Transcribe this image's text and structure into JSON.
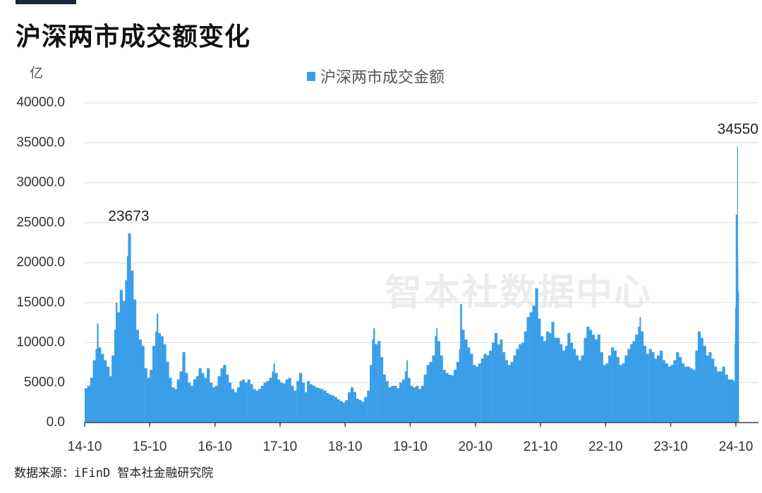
{
  "colors": {
    "accent": "#1c2541",
    "bar": "#3a9fe8"
  },
  "watermark": "智本社数据中心",
  "source_note": "数据来源：iFinD 智本社金融研究院",
  "chart_data": {
    "type": "bar",
    "title": "沪深两市成交额变化",
    "ylabel": "亿",
    "ylim": [
      0,
      40000
    ],
    "y_ticks": [
      "0.0",
      "5000.0",
      "10000.0",
      "15000.0",
      "20000.0",
      "25000.0",
      "30000.0",
      "35000.0",
      "40000.0"
    ],
    "x_ticks": [
      "14-10",
      "15-10",
      "16-10",
      "17-10",
      "18-10",
      "19-10",
      "20-10",
      "21-10",
      "22-10",
      "23-10",
      "24-10"
    ],
    "grid": "horizontal",
    "legend_position": "top-center",
    "annotations": [
      {
        "x": "2015-06-01",
        "y": 23673,
        "text": "23673"
      },
      {
        "x": "2024-10-08",
        "y": 34550,
        "text": "34550"
      }
    ],
    "series": [
      {
        "name": "沪深两市成交金额",
        "points": [
          [
            "2014-10-01",
            4300
          ],
          [
            "2014-10-16",
            4600
          ],
          [
            "2014-11-01",
            5600
          ],
          [
            "2014-11-16",
            7800
          ],
          [
            "2014-12-01",
            9200
          ],
          [
            "2014-12-09",
            12400
          ],
          [
            "2014-12-16",
            9400
          ],
          [
            "2015-01-01",
            8600
          ],
          [
            "2015-01-16",
            7800
          ],
          [
            "2015-02-01",
            7000
          ],
          [
            "2015-02-16",
            5800
          ],
          [
            "2015-03-01",
            8400
          ],
          [
            "2015-03-16",
            11600
          ],
          [
            "2015-03-24",
            15000
          ],
          [
            "2015-04-01",
            13800
          ],
          [
            "2015-04-16",
            16600
          ],
          [
            "2015-05-01",
            15200
          ],
          [
            "2015-05-16",
            17800
          ],
          [
            "2015-05-26",
            20800
          ],
          [
            "2015-06-01",
            23673
          ],
          [
            "2015-06-16",
            19000
          ],
          [
            "2015-07-01",
            15400
          ],
          [
            "2015-07-16",
            11600
          ],
          [
            "2015-08-01",
            10400
          ],
          [
            "2015-08-16",
            9600
          ],
          [
            "2015-09-01",
            6800
          ],
          [
            "2015-09-16",
            5600
          ],
          [
            "2015-10-01",
            6600
          ],
          [
            "2015-10-16",
            9600
          ],
          [
            "2015-11-01",
            11400
          ],
          [
            "2015-11-09",
            13600
          ],
          [
            "2015-11-16",
            11200
          ],
          [
            "2015-12-01",
            10800
          ],
          [
            "2015-12-16",
            9800
          ],
          [
            "2016-01-01",
            7600
          ],
          [
            "2016-01-16",
            5600
          ],
          [
            "2016-02-01",
            4400
          ],
          [
            "2016-02-16",
            4200
          ],
          [
            "2016-03-01",
            5400
          ],
          [
            "2016-03-16",
            6400
          ],
          [
            "2016-04-01",
            8800
          ],
          [
            "2016-04-16",
            6200
          ],
          [
            "2016-05-01",
            5000
          ],
          [
            "2016-05-16",
            4600
          ],
          [
            "2016-06-01",
            5400
          ],
          [
            "2016-06-16",
            5800
          ],
          [
            "2016-07-01",
            6800
          ],
          [
            "2016-07-16",
            6200
          ],
          [
            "2016-08-01",
            5600
          ],
          [
            "2016-08-16",
            6800
          ],
          [
            "2016-09-01",
            5000
          ],
          [
            "2016-09-16",
            4400
          ],
          [
            "2016-10-01",
            4600
          ],
          [
            "2016-10-16",
            5800
          ],
          [
            "2016-11-01",
            6800
          ],
          [
            "2016-11-16",
            7200
          ],
          [
            "2016-12-01",
            6000
          ],
          [
            "2016-12-16",
            5000
          ],
          [
            "2017-01-01",
            4200
          ],
          [
            "2017-01-16",
            3800
          ],
          [
            "2017-02-01",
            4400
          ],
          [
            "2017-02-16",
            5200
          ],
          [
            "2017-03-01",
            5400
          ],
          [
            "2017-03-16",
            5000
          ],
          [
            "2017-04-01",
            5400
          ],
          [
            "2017-04-16",
            4800
          ],
          [
            "2017-05-01",
            4200
          ],
          [
            "2017-05-16",
            4000
          ],
          [
            "2017-06-01",
            4200
          ],
          [
            "2017-06-16",
            4600
          ],
          [
            "2017-07-01",
            5000
          ],
          [
            "2017-07-16",
            5200
          ],
          [
            "2017-08-01",
            5600
          ],
          [
            "2017-08-16",
            6400
          ],
          [
            "2017-08-25",
            7400
          ],
          [
            "2017-09-01",
            6200
          ],
          [
            "2017-09-16",
            5400
          ],
          [
            "2017-10-01",
            5000
          ],
          [
            "2017-10-16",
            4900
          ],
          [
            "2017-11-01",
            5400
          ],
          [
            "2017-11-16",
            5600
          ],
          [
            "2017-12-01",
            4600
          ],
          [
            "2017-12-16",
            4000
          ],
          [
            "2018-01-01",
            5200
          ],
          [
            "2018-01-16",
            6200
          ],
          [
            "2018-02-01",
            5000
          ],
          [
            "2018-02-16",
            3800
          ],
          [
            "2018-03-01",
            5200
          ],
          [
            "2018-03-16",
            4800
          ],
          [
            "2018-04-01",
            4600
          ],
          [
            "2018-04-16",
            4400
          ],
          [
            "2018-05-01",
            4300
          ],
          [
            "2018-05-16",
            4200
          ],
          [
            "2018-06-01",
            4000
          ],
          [
            "2018-06-16",
            3700
          ],
          [
            "2018-07-01",
            3500
          ],
          [
            "2018-07-16",
            3400
          ],
          [
            "2018-08-01",
            3200
          ],
          [
            "2018-08-16",
            2900
          ],
          [
            "2018-09-01",
            2700
          ],
          [
            "2018-09-16",
            2500
          ],
          [
            "2018-10-01",
            2800
          ],
          [
            "2018-10-16",
            3800
          ],
          [
            "2018-11-01",
            4400
          ],
          [
            "2018-11-16",
            3800
          ],
          [
            "2018-12-01",
            3000
          ],
          [
            "2018-12-16",
            2800
          ],
          [
            "2019-01-01",
            2600
          ],
          [
            "2019-01-16",
            3200
          ],
          [
            "2019-02-01",
            4000
          ],
          [
            "2019-02-16",
            7200
          ],
          [
            "2019-03-01",
            10400
          ],
          [
            "2019-03-08",
            11800
          ],
          [
            "2019-03-16",
            9800
          ],
          [
            "2019-04-01",
            10200
          ],
          [
            "2019-04-16",
            8200
          ],
          [
            "2019-05-01",
            6000
          ],
          [
            "2019-05-16",
            5200
          ],
          [
            "2019-06-01",
            4400
          ],
          [
            "2019-06-16",
            4600
          ],
          [
            "2019-07-01",
            4600
          ],
          [
            "2019-07-16",
            4300
          ],
          [
            "2019-08-01",
            5000
          ],
          [
            "2019-08-16",
            5400
          ],
          [
            "2019-09-01",
            6400
          ],
          [
            "2019-09-10",
            7800
          ],
          [
            "2019-09-16",
            5600
          ],
          [
            "2019-10-01",
            4600
          ],
          [
            "2019-10-16",
            4400
          ],
          [
            "2019-11-01",
            4600
          ],
          [
            "2019-11-16",
            4200
          ],
          [
            "2019-12-01",
            4600
          ],
          [
            "2019-12-16",
            6000
          ],
          [
            "2020-01-01",
            7200
          ],
          [
            "2020-01-16",
            7600
          ],
          [
            "2020-02-01",
            8400
          ],
          [
            "2020-02-16",
            10800
          ],
          [
            "2020-02-24",
            11800
          ],
          [
            "2020-03-01",
            10200
          ],
          [
            "2020-03-16",
            8400
          ],
          [
            "2020-04-01",
            6600
          ],
          [
            "2020-04-16",
            6200
          ],
          [
            "2020-05-01",
            6000
          ],
          [
            "2020-05-16",
            5900
          ],
          [
            "2020-06-01",
            6600
          ],
          [
            "2020-06-16",
            7600
          ],
          [
            "2020-07-01",
            9200
          ],
          [
            "2020-07-07",
            14800
          ],
          [
            "2020-07-16",
            11600
          ],
          [
            "2020-08-01",
            10400
          ],
          [
            "2020-08-16",
            9400
          ],
          [
            "2020-09-01",
            8600
          ],
          [
            "2020-09-16",
            7200
          ],
          [
            "2020-10-01",
            7000
          ],
          [
            "2020-10-16",
            7400
          ],
          [
            "2020-11-01",
            8000
          ],
          [
            "2020-11-16",
            8600
          ],
          [
            "2020-12-01",
            8400
          ],
          [
            "2020-12-16",
            9000
          ],
          [
            "2021-01-01",
            10000
          ],
          [
            "2021-01-16",
            11200
          ],
          [
            "2021-02-01",
            9800
          ],
          [
            "2021-02-16",
            10400
          ],
          [
            "2021-03-01",
            8800
          ],
          [
            "2021-03-16",
            7800
          ],
          [
            "2021-04-01",
            7200
          ],
          [
            "2021-04-16",
            7600
          ],
          [
            "2021-05-01",
            8400
          ],
          [
            "2021-05-16",
            9200
          ],
          [
            "2021-06-01",
            9800
          ],
          [
            "2021-06-16",
            10000
          ],
          [
            "2021-07-01",
            11400
          ],
          [
            "2021-07-16",
            13200
          ],
          [
            "2021-08-01",
            13800
          ],
          [
            "2021-08-16",
            14600
          ],
          [
            "2021-09-01",
            16800
          ],
          [
            "2021-09-16",
            13000
          ],
          [
            "2021-10-01",
            10800
          ],
          [
            "2021-10-16",
            10200
          ],
          [
            "2021-11-01",
            11400
          ],
          [
            "2021-11-16",
            11200
          ],
          [
            "2021-12-01",
            12600
          ],
          [
            "2021-12-16",
            10600
          ],
          [
            "2022-01-01",
            10600
          ],
          [
            "2022-01-16",
            9800
          ],
          [
            "2022-02-01",
            9000
          ],
          [
            "2022-02-16",
            9600
          ],
          [
            "2022-03-01",
            11200
          ],
          [
            "2022-03-16",
            10000
          ],
          [
            "2022-04-01",
            9200
          ],
          [
            "2022-04-16",
            8400
          ],
          [
            "2022-05-01",
            7800
          ],
          [
            "2022-05-16",
            8400
          ],
          [
            "2022-06-01",
            10600
          ],
          [
            "2022-06-16",
            12000
          ],
          [
            "2022-07-01",
            11600
          ],
          [
            "2022-07-16",
            11000
          ],
          [
            "2022-08-01",
            10400
          ],
          [
            "2022-08-16",
            11000
          ],
          [
            "2022-09-01",
            8800
          ],
          [
            "2022-09-16",
            7200
          ],
          [
            "2022-10-01",
            7400
          ],
          [
            "2022-10-16",
            8400
          ],
          [
            "2022-11-01",
            9400
          ],
          [
            "2022-11-16",
            9000
          ],
          [
            "2022-12-01",
            8200
          ],
          [
            "2022-12-16",
            7200
          ],
          [
            "2023-01-01",
            7400
          ],
          [
            "2023-01-16",
            8400
          ],
          [
            "2023-02-01",
            9200
          ],
          [
            "2023-02-16",
            9800
          ],
          [
            "2023-03-01",
            10200
          ],
          [
            "2023-03-16",
            11000
          ],
          [
            "2023-04-01",
            12000
          ],
          [
            "2023-04-10",
            13200
          ],
          [
            "2023-04-16",
            11400
          ],
          [
            "2023-05-01",
            9600
          ],
          [
            "2023-05-16",
            8600
          ],
          [
            "2023-06-01",
            9200
          ],
          [
            "2023-06-16",
            8800
          ],
          [
            "2023-07-01",
            8000
          ],
          [
            "2023-07-16",
            8400
          ],
          [
            "2023-08-01",
            9000
          ],
          [
            "2023-08-16",
            7800
          ],
          [
            "2023-09-01",
            7400
          ],
          [
            "2023-09-16",
            7000
          ],
          [
            "2023-10-01",
            7200
          ],
          [
            "2023-10-16",
            7800
          ],
          [
            "2023-11-01",
            8800
          ],
          [
            "2023-11-16",
            8200
          ],
          [
            "2023-12-01",
            7400
          ],
          [
            "2023-12-16",
            7000
          ],
          [
            "2024-01-01",
            7000
          ],
          [
            "2024-01-16",
            6800
          ],
          [
            "2024-02-01",
            6600
          ],
          [
            "2024-02-16",
            9000
          ],
          [
            "2024-03-01",
            11400
          ],
          [
            "2024-03-16",
            10600
          ],
          [
            "2024-04-01",
            9600
          ],
          [
            "2024-04-16",
            8400
          ],
          [
            "2024-05-01",
            8800
          ],
          [
            "2024-05-16",
            8000
          ],
          [
            "2024-06-01",
            7000
          ],
          [
            "2024-06-16",
            6400
          ],
          [
            "2024-07-01",
            6400
          ],
          [
            "2024-07-16",
            7000
          ],
          [
            "2024-08-01",
            6000
          ],
          [
            "2024-08-16",
            5400
          ],
          [
            "2024-09-01",
            5400
          ],
          [
            "2024-09-16",
            5200
          ],
          [
            "2024-09-24",
            9800
          ],
          [
            "2024-09-26",
            11600
          ],
          [
            "2024-09-27",
            14400
          ],
          [
            "2024-09-30",
            26000
          ],
          [
            "2024-10-08",
            34550
          ],
          [
            "2024-10-09",
            21800
          ],
          [
            "2024-10-10",
            19400
          ],
          [
            "2024-10-11",
            16400
          ]
        ]
      }
    ]
  }
}
